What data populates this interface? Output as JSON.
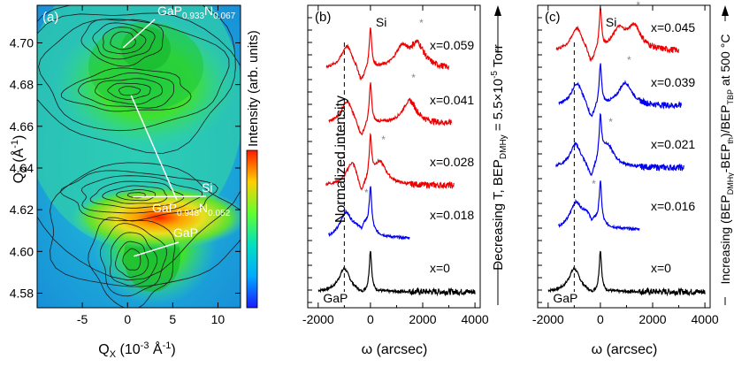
{
  "chart_data": [
    {
      "panel": "(a)",
      "type": "heatmap",
      "xlabel": "Q",
      "xlabel_sub": "X",
      "xlabel_unit": " (10",
      "xlabel_unit_sup": "-3",
      "xlabel_unit_end": " Å",
      "xlabel_unit_sup2": "-1",
      "xlabel_close": ")",
      "ylabel": "Q",
      "ylabel_sub": "Z",
      "ylabel_unit": " (Å",
      "ylabel_unit_sup": "-1",
      "ylabel_close": ")",
      "xlim": [
        -10,
        12.5
      ],
      "ylim": [
        4.573,
        4.718
      ],
      "xticks": [
        -5,
        0,
        5,
        10
      ],
      "yticks": [
        4.58,
        4.6,
        4.62,
        4.64,
        4.66,
        4.68,
        4.7
      ],
      "ytick_labels": [
        "4.58",
        "4.60",
        "4.62",
        "4.64",
        "4.66",
        "4.68",
        "4.70"
      ],
      "colorbar_label": "Intensity (arb. units)",
      "peaks": [
        {
          "label": "GaP",
          "sub": "0.933",
          "label2": "N",
          "sub2": "0.067",
          "qx": -0.5,
          "qz": 4.701
        },
        {
          "label": "GaP",
          "sub": "0.948",
          "label2": "N",
          "sub2": "0.052",
          "qx": 0,
          "qz": 4.677
        },
        {
          "label": "Si",
          "sub": "",
          "label2": "",
          "sub2": "",
          "qx": 1.0,
          "qz": 4.627
        },
        {
          "label": "GaP",
          "sub": "",
          "label2": "",
          "sub2": "",
          "qx": 0.5,
          "qz": 4.596
        }
      ]
    },
    {
      "panel": "(b)",
      "type": "line",
      "xlabel": "ω (arcsec)",
      "ylabel": "Normalized intensity",
      "xlim": [
        -2400,
        4200
      ],
      "xticks": [
        -2000,
        0,
        2000,
        4000
      ],
      "reference_label": "GaP",
      "si_label": "Si",
      "series": [
        {
          "name": "x=0",
          "color": "#000000",
          "gap_peak": -1000,
          "layer_peak": null
        },
        {
          "name": "x=0.018",
          "color": "#0000ee",
          "gap_peak": -950,
          "layer_peak": -300
        },
        {
          "name": "x=0.028",
          "color": "#ee0000",
          "gap_peak": -700,
          "layer_peak": 350
        },
        {
          "name": "x=0.041",
          "color": "#ee0000",
          "gap_peak": -900,
          "layer_peak": 1500
        },
        {
          "name": "x=0.059",
          "color": "#ee0000",
          "gap_peak": -900,
          "layer_peak": 1800
        }
      ],
      "side_label": "Decreasing T, BEP",
      "side_label_sub": "DMHy",
      "side_label_end": " = 5.5×10",
      "side_label_sup": "-5",
      "side_label_unit": " Torr"
    },
    {
      "panel": "(c)",
      "type": "line",
      "xlabel": "ω (arcsec)",
      "xlim": [
        -2400,
        4200
      ],
      "xticks": [
        -2000,
        0,
        2000,
        4000
      ],
      "reference_label": "GaP",
      "si_label": "Si",
      "series": [
        {
          "name": "x=0",
          "color": "#000000",
          "gap_peak": -1000,
          "layer_peak": null
        },
        {
          "name": "x=0.016",
          "color": "#0000ee",
          "gap_peak": -950,
          "layer_peak": -400
        },
        {
          "name": "x=0.021",
          "color": "#0000ee",
          "gap_peak": -950,
          "layer_peak": 250
        },
        {
          "name": "x=0.039",
          "color": "#0000ee",
          "gap_peak": -900,
          "layer_peak": 950
        },
        {
          "name": "x=0.045",
          "color": "#ee0000",
          "gap_peak": -900,
          "layer_peak": 1300
        }
      ],
      "side_label": "Increasing (BEP",
      "side_label_sub": "DMHy",
      "side_label_mid": "-BEP",
      "side_label_sub2": "th",
      "side_label_mid2": ")/BEP",
      "side_label_sub3": "TBP",
      "side_label_end": " at 500 °C"
    }
  ]
}
